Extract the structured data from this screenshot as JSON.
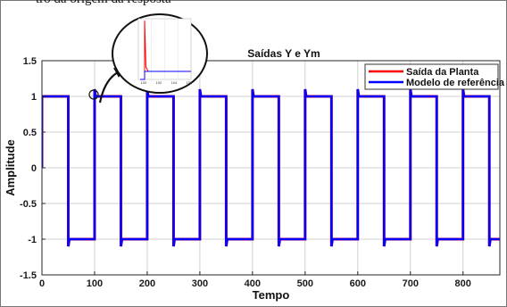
{
  "page": {
    "caption": "tro da origem da resposta"
  },
  "chart_data": {
    "type": "line",
    "title": "Saídas Y e Ym",
    "xlabel": "Tempo",
    "ylabel": "Amplitude",
    "xlim": [
      0,
      870
    ],
    "ylim": [
      -1.5,
      1.5
    ],
    "xticks": [
      0,
      100,
      200,
      300,
      400,
      500,
      600,
      700,
      800
    ],
    "xtick_labels": [
      "0",
      "100",
      "200",
      "300",
      "400",
      "500",
      "600",
      "700",
      "800"
    ],
    "yticks": [
      -1.5,
      -1,
      -0.5,
      0,
      0.5,
      1,
      1.5
    ],
    "ytick_labels": [
      "-1.5",
      "-1",
      "-0.5",
      "0",
      "0.5",
      "1",
      "1.5"
    ],
    "grid": true,
    "legend_position": "top-right",
    "square_wave": {
      "period": 100,
      "high": 1,
      "low": -1,
      "overshoot": 1.1,
      "start": 0,
      "end": 870
    },
    "series": [
      {
        "name": "Saída da Planta",
        "color": "#ff0000"
      },
      {
        "name": "Modelo de referência",
        "color": "#0000ff"
      }
    ],
    "inset": {
      "xtick_labels": [
        "100",
        "102",
        "104",
        "106"
      ]
    }
  }
}
